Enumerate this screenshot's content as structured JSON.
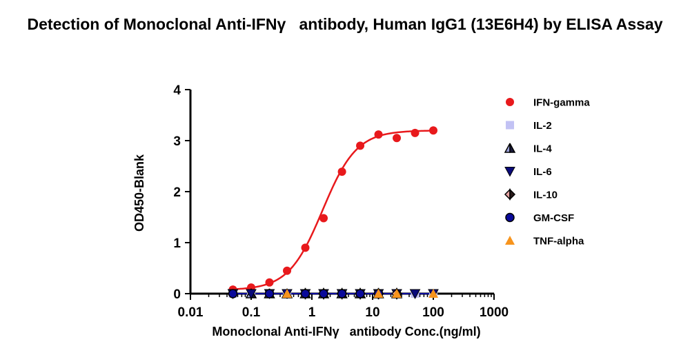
{
  "chart_data": {
    "type": "scatter",
    "title": "Detection of Monoclonal Anti-IFNγ   antibody, Human IgG1 (13E6H4) by ELISA Assay",
    "xlabel": "Monoclonal Anti-IFNγ   antibody Conc.(ng/ml)",
    "ylabel": "OD450-Blank",
    "xscale": "log",
    "xlim": [
      0.01,
      1000
    ],
    "ylim": [
      0,
      4
    ],
    "xticks": [
      "0.01",
      "0.1",
      "1",
      "10",
      "100",
      "1000"
    ],
    "yticks": [
      "0",
      "1",
      "2",
      "3",
      "4"
    ],
    "legend_position": "right",
    "series": [
      {
        "name": "IFN-gamma",
        "marker": "circle",
        "color": "#e8191c",
        "fit_curve": true,
        "x": [
          0.05,
          0.1,
          0.2,
          0.39,
          0.78,
          1.56,
          3.13,
          6.25,
          12.5,
          25,
          50,
          100
        ],
        "y": [
          0.08,
          0.12,
          0.22,
          0.45,
          0.9,
          1.48,
          2.39,
          2.9,
          3.12,
          3.05,
          3.15,
          3.2
        ]
      },
      {
        "name": "IL-2",
        "marker": "square",
        "color": "#c2c2f4",
        "x": [
          0.05,
          0.1,
          0.2,
          0.39,
          0.78,
          1.56,
          3.13,
          6.25,
          12.5,
          25,
          50,
          100
        ],
        "y": [
          0,
          0,
          0,
          0,
          0,
          0,
          0,
          0,
          0,
          0,
          0,
          0
        ]
      },
      {
        "name": "IL-4",
        "marker": "triangle-up-split",
        "color": "#6a6ab8",
        "x": [
          0.1,
          0.2,
          0.39,
          0.78,
          1.56,
          3.13,
          6.25,
          12.5,
          25
        ],
        "y": [
          0,
          0,
          0,
          0,
          0,
          0,
          0,
          0,
          0
        ]
      },
      {
        "name": "IL-6",
        "marker": "triangle-down",
        "color": "#0a0a7a",
        "x": [
          0.05,
          0.1,
          0.2,
          0.39,
          0.78,
          1.56,
          3.13,
          6.25,
          12.5,
          25,
          50,
          100
        ],
        "y": [
          0,
          0,
          0,
          0,
          0,
          0,
          0,
          0,
          0,
          0,
          0,
          0
        ]
      },
      {
        "name": "IL-10",
        "marker": "diamond-split",
        "color": "#e7a3a3",
        "x": [
          0.78,
          1.56,
          3.13,
          6.25,
          12.5,
          25
        ],
        "y": [
          0,
          0,
          0,
          0,
          0,
          0
        ]
      },
      {
        "name": "GM-CSF",
        "marker": "circle",
        "color": "#0a0a9a",
        "x": [
          0.05,
          0.2,
          0.78,
          1.56,
          3.13,
          6.25,
          12.5
        ],
        "y": [
          0,
          0,
          0,
          0,
          0,
          0,
          0
        ]
      },
      {
        "name": "TNF-alpha",
        "marker": "triangle-up",
        "color": "#f7941d",
        "x": [
          0.39,
          12.5,
          25,
          100
        ],
        "y": [
          0,
          0,
          0,
          0
        ]
      }
    ]
  }
}
